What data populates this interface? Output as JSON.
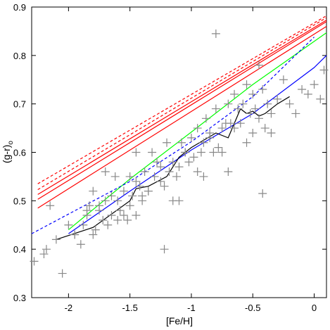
{
  "chart_data": {
    "type": "scatter",
    "title": "",
    "xlabel": "[Fe/H]",
    "ylabel_main": "(g-r)",
    "ylabel_sub": "o",
    "xlim": [
      -2.3,
      0.1
    ],
    "ylim": [
      0.3,
      0.9
    ],
    "xticks": [
      -2,
      -1.5,
      -1,
      -0.5,
      0
    ],
    "xtick_labels": [
      "-2",
      "-1.5",
      "-1",
      "-0.5",
      "0"
    ],
    "yticks": [
      0.3,
      0.4,
      0.5,
      0.6,
      0.7,
      0.8,
      0.9
    ],
    "ytick_labels": [
      "0.3",
      "0.4",
      "0.5",
      "0.6",
      "0.7",
      "0.8",
      "0.9"
    ],
    "grid": false,
    "colors": {
      "red": "#ff0000",
      "green": "#00ff00",
      "blue": "#0000ff",
      "black": "#000000",
      "points": "#888888"
    },
    "scatter": {
      "marker": "plus",
      "color": "#888888",
      "x": [
        -2.28,
        -2.2,
        -2.18,
        -2.1,
        -2.05,
        -2.0,
        -1.95,
        -1.9,
        -1.88,
        -1.85,
        -1.83,
        -1.8,
        -1.8,
        -1.78,
        -1.75,
        -1.72,
        -1.7,
        -1.7,
        -1.68,
        -1.65,
        -1.62,
        -1.6,
        -1.58,
        -1.55,
        -1.52,
        -1.5,
        -1.5,
        -1.48,
        -1.45,
        -1.45,
        -1.42,
        -1.4,
        -1.38,
        -1.35,
        -1.32,
        -1.3,
        -1.28,
        -1.25,
        -1.22,
        -1.2,
        -1.18,
        -1.15,
        -1.12,
        -1.1,
        -1.08,
        -1.05,
        -1.02,
        -1.0,
        -0.98,
        -0.95,
        -0.92,
        -0.9,
        -0.88,
        -0.85,
        -0.82,
        -0.8,
        -0.78,
        -0.75,
        -0.72,
        -0.7,
        -0.68,
        -0.65,
        -0.62,
        -0.6,
        -0.58,
        -0.55,
        -0.52,
        -0.5,
        -0.48,
        -0.45,
        -0.42,
        -0.4,
        -0.38,
        -0.35,
        -0.3,
        -0.25,
        -0.2,
        -0.15,
        -0.1,
        -0.05,
        0.0,
        0.05,
        0.08,
        -1.85,
        -1.75,
        -1.65,
        -1.55,
        -1.45,
        -1.35,
        -1.25,
        -1.15,
        -1.05,
        -0.95,
        -0.85,
        -0.75,
        -0.65,
        -0.55,
        -0.45,
        -0.35,
        -1.22,
        -0.8,
        -0.42,
        -1.95,
        -2.15,
        -1.6,
        -1.4,
        -1.1,
        -0.9,
        -0.7,
        -0.5
      ],
      "y": [
        0.375,
        0.39,
        0.4,
        0.42,
        0.35,
        0.45,
        0.43,
        0.41,
        0.45,
        0.47,
        0.49,
        0.43,
        0.52,
        0.44,
        0.48,
        0.46,
        0.5,
        0.56,
        0.45,
        0.47,
        0.55,
        0.5,
        0.48,
        0.52,
        0.46,
        0.55,
        0.49,
        0.51,
        0.47,
        0.6,
        0.53,
        0.5,
        0.56,
        0.52,
        0.6,
        0.55,
        0.58,
        0.54,
        0.53,
        0.62,
        0.56,
        0.58,
        0.55,
        0.57,
        0.62,
        0.6,
        0.58,
        0.63,
        0.59,
        0.65,
        0.6,
        0.62,
        0.67,
        0.64,
        0.6,
        0.69,
        0.61,
        0.65,
        0.66,
        0.7,
        0.66,
        0.72,
        0.69,
        0.66,
        0.7,
        0.74,
        0.68,
        0.72,
        0.69,
        0.78,
        0.73,
        0.65,
        0.7,
        0.68,
        0.71,
        0.75,
        0.7,
        0.68,
        0.73,
        0.72,
        0.74,
        0.71,
        0.77,
        0.48,
        0.49,
        0.51,
        0.47,
        0.54,
        0.52,
        0.57,
        0.5,
        0.6,
        0.56,
        0.63,
        0.6,
        0.65,
        0.62,
        0.67,
        0.64,
        0.4,
        0.845,
        0.515,
        0.43,
        0.49,
        0.46,
        0.51,
        0.5,
        0.55,
        0.56,
        0.64
      ]
    },
    "series": [
      {
        "style": "solid",
        "color": "#ff0000",
        "x": [
          -2.25,
          0.1
        ],
        "y": [
          0.485,
          0.86
        ]
      },
      {
        "style": "solid",
        "color": "#ff0000",
        "x": [
          -2.25,
          0.1
        ],
        "y": [
          0.503,
          0.87
        ]
      },
      {
        "style": "solid",
        "color": "#ff0000",
        "x": [
          -2.25,
          0.1
        ],
        "y": [
          0.513,
          0.873
        ]
      },
      {
        "style": "dashed",
        "color": "#ff0000",
        "x": [
          -2.25,
          0.1
        ],
        "y": [
          0.523,
          0.878
        ]
      },
      {
        "style": "dashed",
        "color": "#ff0000",
        "x": [
          -2.25,
          0.1
        ],
        "y": [
          0.535,
          0.882
        ]
      },
      {
        "style": "solid",
        "color": "#00ff00",
        "x": [
          -2.0,
          -1.5,
          -1.0,
          -0.5,
          0.1
        ],
        "y": [
          0.44,
          0.545,
          0.642,
          0.74,
          0.847
        ]
      },
      {
        "style": "dashed",
        "color": "#0000ff",
        "x": [
          -2.3,
          -1.5,
          -1.0,
          -0.5,
          0.0
        ],
        "y": [
          0.432,
          0.54,
          0.622,
          0.715,
          0.838
        ]
      },
      {
        "style": "solid",
        "color": "#0000ff",
        "x": [
          -2.0,
          -1.5,
          -1.0,
          -0.5,
          0.0,
          0.1
        ],
        "y": [
          0.432,
          0.52,
          0.605,
          0.68,
          0.775,
          0.8
        ]
      },
      {
        "style": "solid",
        "color": "#000000",
        "x": [
          -2.1,
          -1.8,
          -1.5,
          -1.45,
          -1.35,
          -1.2,
          -1.1,
          -1.0,
          -0.8,
          -0.7,
          -0.6,
          -0.55,
          -0.5,
          -0.45,
          -0.4,
          -0.3,
          -0.2
        ],
        "y": [
          0.42,
          0.445,
          0.5,
          0.525,
          0.53,
          0.55,
          0.59,
          0.61,
          0.64,
          0.63,
          0.69,
          0.68,
          0.685,
          0.675,
          0.68,
          0.7,
          0.715
        ]
      }
    ]
  }
}
